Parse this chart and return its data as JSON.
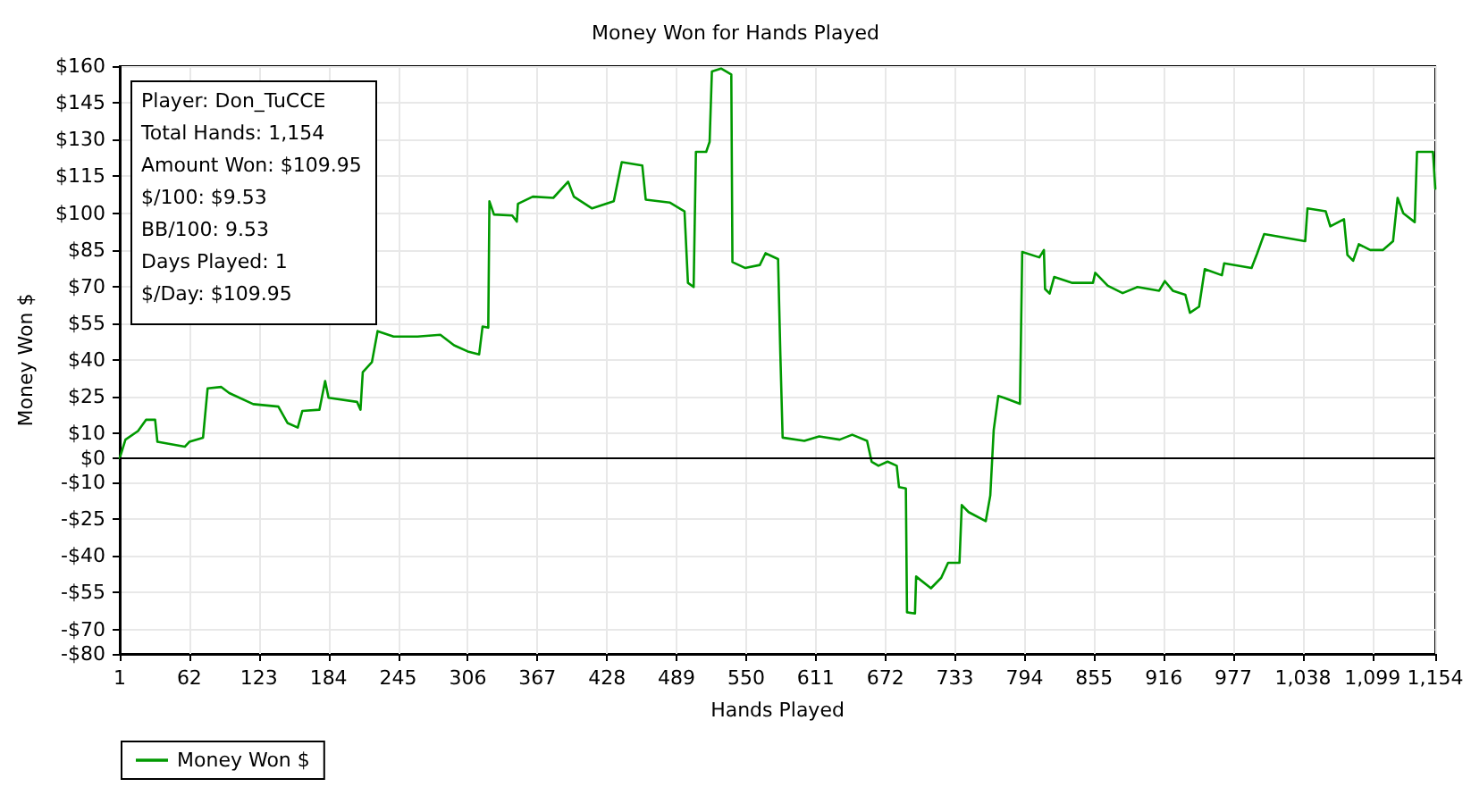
{
  "chart_data": {
    "type": "line",
    "title": "Money Won for Hands Played",
    "xlabel": "Hands Played",
    "ylabel": "Money Won $",
    "annotations": [
      "Player: Don_TuCCE",
      "Total Hands: 1,154",
      "Amount Won: $109.95",
      "$/100: $9.53",
      "BB/100: 9.53",
      "Days Played: 1",
      "$/Day: $109.95"
    ],
    "series": [
      {
        "name": "Money Won $",
        "color": "#009900",
        "x": [
          1,
          6,
          17,
          24,
          32,
          34,
          58,
          62,
          74,
          78,
          90,
          97,
          118,
          140,
          148,
          157,
          161,
          176,
          181,
          184,
          209,
          212,
          214,
          222,
          227,
          241,
          262,
          282,
          294,
          306,
          316,
          319,
          324,
          325,
          329,
          345,
          349,
          350,
          363,
          381,
          394,
          399,
          415,
          434,
          441,
          459,
          462,
          483,
          496,
          499,
          504,
          506,
          515,
          518,
          520,
          528,
          537,
          538,
          549,
          562,
          567,
          578,
          580,
          582,
          601,
          614,
          632,
          643,
          656,
          660,
          666,
          674,
          682,
          684,
          690,
          691,
          698,
          699,
          712,
          721,
          727,
          737,
          739,
          745,
          760,
          764,
          767,
          771,
          776,
          790,
          792,
          807,
          811,
          812,
          816,
          820,
          836,
          854,
          856,
          867,
          880,
          893,
          912,
          917,
          924,
          935,
          939,
          947,
          952,
          967,
          969,
          993,
          998,
          1004,
          1040,
          1042,
          1058,
          1062,
          1074,
          1077,
          1082,
          1087,
          1097,
          1108,
          1117,
          1121,
          1126,
          1136,
          1138,
          1152,
          1154
        ],
        "values": [
          0,
          7.5,
          11,
          15.6,
          15.6,
          6.6,
          4.6,
          6.6,
          8.3,
          28.4,
          29,
          26.5,
          22,
          21,
          14.3,
          12.4,
          19.2,
          19.7,
          31.4,
          24.6,
          22.9,
          19.7,
          35,
          39.1,
          51.8,
          49.6,
          49.6,
          50.3,
          46,
          43.5,
          42.3,
          53.7,
          53.2,
          104.8,
          99.4,
          99,
          96.5,
          103.8,
          106.7,
          106.2,
          112.8,
          106.7,
          101.9,
          104.8,
          120.8,
          119.4,
          105.5,
          104.3,
          100.7,
          71.5,
          69.8,
          125,
          125,
          129.1,
          157.8,
          159,
          156.6,
          80,
          77.6,
          78.8,
          83.6,
          81.2,
          42.3,
          8.3,
          7,
          8.8,
          7.5,
          9.5,
          7,
          -1.5,
          -3.2,
          -1.5,
          -3.2,
          -11.9,
          -12.4,
          -63,
          -63.5,
          -48.4,
          -53.2,
          -48.9,
          -42.8,
          -42.8,
          -19.2,
          -22.1,
          -25.8,
          -15.3,
          11.4,
          25.3,
          24.6,
          22.1,
          84.1,
          81.9,
          84.9,
          69,
          67.1,
          73.9,
          71.5,
          71.5,
          75.6,
          70.3,
          67.3,
          69.8,
          68.3,
          72.2,
          68.3,
          66.6,
          59.3,
          61.8,
          77.1,
          74.6,
          79.5,
          77.6,
          83.6,
          91.4,
          88.5,
          101.9,
          100.7,
          94.6,
          97.5,
          82.9,
          80.5,
          87.3,
          84.9,
          84.9,
          88.5,
          106.2,
          99.9,
          96.3,
          125,
          125,
          110
        ]
      }
    ],
    "xlim": [
      1,
      1154
    ],
    "xticks": [
      1,
      62,
      123,
      184,
      245,
      306,
      367,
      428,
      489,
      550,
      611,
      672,
      733,
      794,
      855,
      916,
      977,
      {
        "value": 1038,
        "label": "1,038"
      },
      {
        "value": 1099,
        "label": "1,099"
      },
      {
        "value": 1154,
        "label": "1,154"
      }
    ],
    "ylim": [
      -80,
      160
    ],
    "yticks": [
      {
        "value": 160,
        "label": "$160"
      },
      {
        "value": 145,
        "label": "$145"
      },
      {
        "value": 130,
        "label": "$130"
      },
      {
        "value": 115,
        "label": "$115"
      },
      {
        "value": 100,
        "label": "$100"
      },
      {
        "value": 85,
        "label": "$85"
      },
      {
        "value": 70,
        "label": "$70"
      },
      {
        "value": 55,
        "label": "$55"
      },
      {
        "value": 40,
        "label": "$40"
      },
      {
        "value": 25,
        "label": "$25"
      },
      {
        "value": 10,
        "label": "$10"
      },
      {
        "value": 0,
        "label": "$0"
      },
      {
        "value": -10,
        "label": "-$10"
      },
      {
        "value": -25,
        "label": "-$25"
      },
      {
        "value": -40,
        "label": "-$40"
      },
      {
        "value": -55,
        "label": "-$55"
      },
      {
        "value": -70,
        "label": "-$70"
      },
      {
        "value": -80,
        "label": "-$80"
      }
    ],
    "ref_lines": [
      {
        "axis": "y",
        "value": 0,
        "color": "#000000"
      }
    ],
    "grid": true,
    "legend": "bottom left",
    "marker": "none",
    "line_style": "solid"
  }
}
